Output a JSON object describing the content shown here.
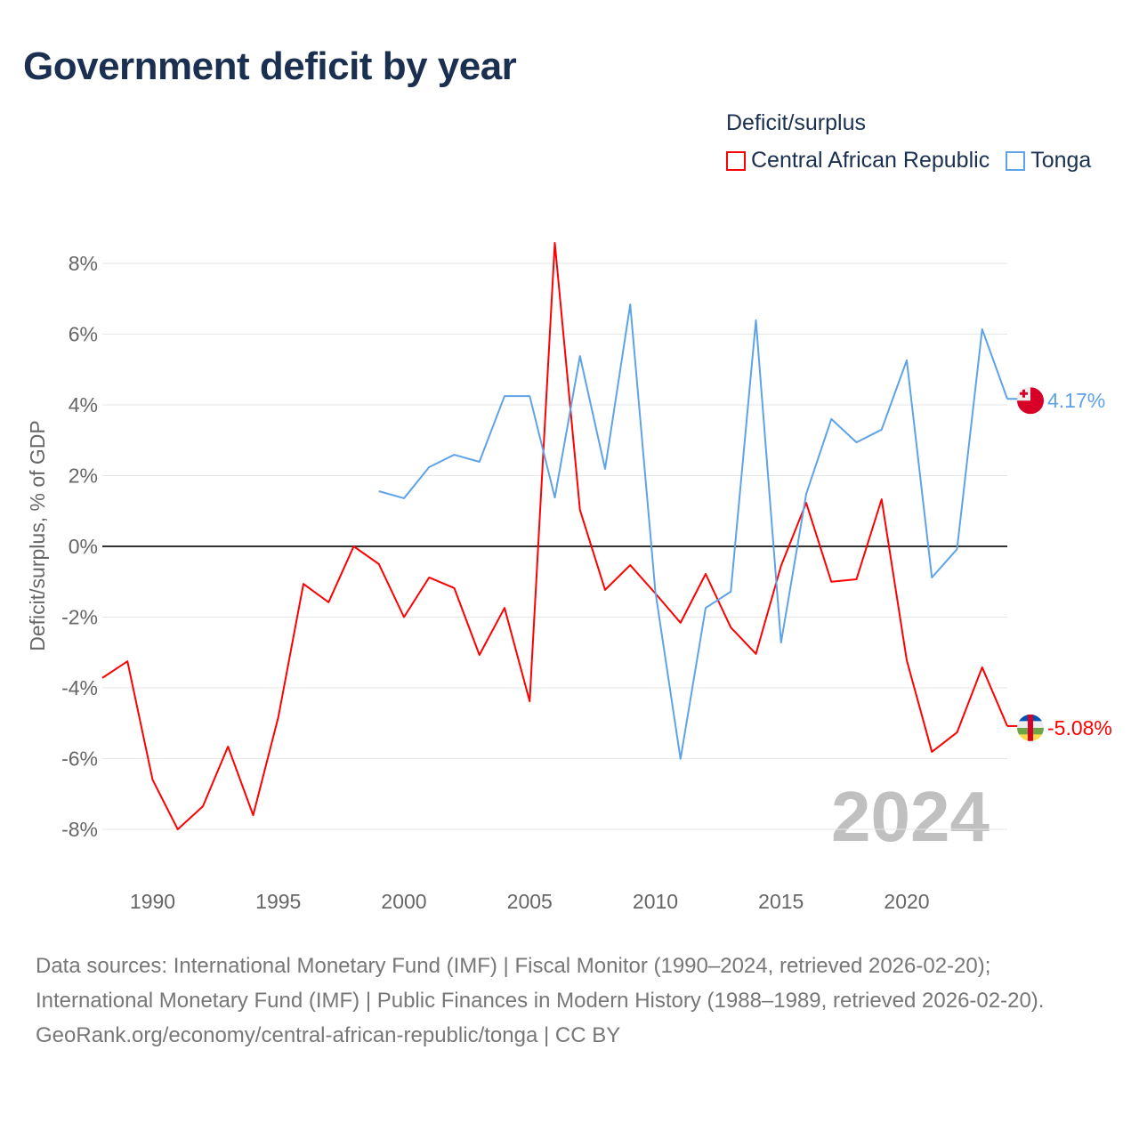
{
  "title": "Government deficit by year",
  "chart_data": {
    "type": "line",
    "title": "Government deficit by year",
    "legend_title": "Deficit/surplus",
    "legend_placement": "top-right",
    "ylabel": "Deficit/surplus, % of GDP",
    "xlabel": "",
    "xlim": [
      1988,
      2024
    ],
    "ylim": [
      -9,
      9
    ],
    "grid": true,
    "x_ticks": [
      1990,
      1995,
      2000,
      2005,
      2010,
      2015,
      2020
    ],
    "y_ticks": [
      8,
      6,
      4,
      2,
      0,
      -2,
      -4,
      -6,
      -8
    ],
    "y_tick_labels": [
      "8%",
      "6%",
      "4%",
      "2%",
      "0%",
      "-2%",
      "-4%",
      "-6%",
      "-8%"
    ],
    "year_watermark": "2024",
    "series": [
      {
        "name": "Central African Republic",
        "color": "#ff0000",
        "end_label": "-5.08%",
        "flag": "central-african-republic-flag",
        "x": [
          1988,
          1989,
          1990,
          1991,
          1992,
          1993,
          1994,
          1995,
          1996,
          1997,
          1998,
          1999,
          2000,
          2001,
          2002,
          2003,
          2004,
          2005,
          2006,
          2007,
          2008,
          2009,
          2010,
          2011,
          2012,
          2013,
          2014,
          2015,
          2016,
          2017,
          2018,
          2019,
          2020,
          2021,
          2022,
          2023,
          2024
        ],
        "values": [
          -3.72,
          -3.25,
          -6.6,
          -8.0,
          -7.35,
          -5.66,
          -7.6,
          -4.83,
          -1.06,
          -1.58,
          0.0,
          -0.5,
          -2.0,
          -0.88,
          -1.18,
          -3.07,
          -1.74,
          -4.38,
          8.58,
          1.03,
          -1.23,
          -0.53,
          -1.33,
          -2.16,
          -0.78,
          -2.29,
          -3.04,
          -0.55,
          1.23,
          -1.0,
          -0.93,
          1.33,
          -3.22,
          -5.81,
          -5.26,
          -3.42,
          -5.08
        ]
      },
      {
        "name": "Tonga",
        "color": "#5ea3e8",
        "end_label": "4.17%",
        "flag": "tonga-flag",
        "x": [
          1999,
          2000,
          2001,
          2002,
          2003,
          2004,
          2005,
          2006,
          2007,
          2008,
          2009,
          2010,
          2011,
          2012,
          2013,
          2014,
          2015,
          2016,
          2017,
          2018,
          2019,
          2020,
          2021,
          2022,
          2023,
          2024
        ],
        "values": [
          1.56,
          1.36,
          2.24,
          2.59,
          2.39,
          4.25,
          4.25,
          1.38,
          5.38,
          2.19,
          6.84,
          -1.28,
          -6.01,
          -1.74,
          -1.28,
          6.39,
          -2.72,
          1.48,
          3.6,
          2.94,
          3.3,
          5.26,
          -0.88,
          -0.08,
          6.14,
          4.17
        ]
      }
    ]
  },
  "footer": {
    "sources": "Data sources: International Monetary Fund (IMF) | Fiscal Monitor (1990–2024, retrieved 2026-02-20); International Monetary Fund (IMF) | Public Finances in Modern History (1988–1989, retrieved 2026-02-20).",
    "credit": "GeoRank.org/economy/central-african-republic/tonga | CC BY"
  }
}
